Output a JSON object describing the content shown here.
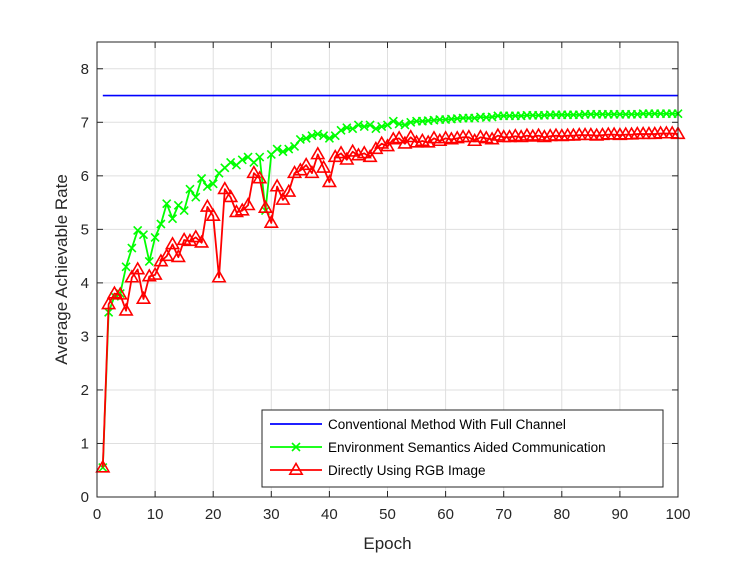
{
  "chart_data": {
    "type": "line",
    "xlabel": "Epoch",
    "ylabel": "Average Achievable Rate",
    "xlim": [
      0,
      100
    ],
    "ylim": [
      0,
      8.5
    ],
    "xticks": [
      0,
      10,
      20,
      30,
      40,
      50,
      60,
      70,
      80,
      90,
      100
    ],
    "yticks": [
      0,
      1,
      2,
      3,
      4,
      5,
      6,
      7,
      8
    ],
    "grid": true,
    "legend_position": "bottom-right",
    "series": [
      {
        "name": "Conventional Method With Full Channel",
        "color": "#0000ff",
        "marker": "none",
        "x": [
          1,
          100
        ],
        "y": [
          7.5,
          7.5
        ]
      },
      {
        "name": "Environment Semantics Aided Communication",
        "color": "#00ff00",
        "marker": "x",
        "x": [
          1,
          2,
          3,
          4,
          5,
          6,
          7,
          8,
          9,
          10,
          11,
          12,
          13,
          14,
          15,
          16,
          17,
          18,
          19,
          20,
          21,
          22,
          23,
          24,
          25,
          26,
          27,
          28,
          29,
          30,
          31,
          32,
          33,
          34,
          35,
          36,
          37,
          38,
          39,
          40,
          41,
          42,
          43,
          44,
          45,
          46,
          47,
          48,
          49,
          50,
          51,
          52,
          53,
          54,
          55,
          56,
          57,
          58,
          59,
          60,
          61,
          62,
          63,
          64,
          65,
          66,
          67,
          68,
          69,
          70,
          71,
          72,
          73,
          74,
          75,
          76,
          77,
          78,
          79,
          80,
          81,
          82,
          83,
          84,
          85,
          86,
          87,
          88,
          89,
          90,
          91,
          92,
          93,
          94,
          95,
          96,
          97,
          98,
          99,
          100
        ],
        "y": [
          0.55,
          3.45,
          3.75,
          3.8,
          4.3,
          4.65,
          4.98,
          4.9,
          4.4,
          4.85,
          5.1,
          5.48,
          5.2,
          5.45,
          5.35,
          5.75,
          5.6,
          5.95,
          5.8,
          5.85,
          6.05,
          6.15,
          6.25,
          6.2,
          6.3,
          6.35,
          6.25,
          6.35,
          5.35,
          6.4,
          6.5,
          6.45,
          6.5,
          6.55,
          6.68,
          6.7,
          6.75,
          6.78,
          6.75,
          6.7,
          6.75,
          6.85,
          6.9,
          6.88,
          6.95,
          6.92,
          6.95,
          6.88,
          6.92,
          6.95,
          7.02,
          6.97,
          6.95,
          7.0,
          7.02,
          7.02,
          7.03,
          7.04,
          7.05,
          7.05,
          7.06,
          7.07,
          7.08,
          7.08,
          7.08,
          7.1,
          7.09,
          7.1,
          7.12,
          7.12,
          7.12,
          7.12,
          7.12,
          7.13,
          7.13,
          7.13,
          7.13,
          7.14,
          7.14,
          7.14,
          7.14,
          7.14,
          7.14,
          7.15,
          7.15,
          7.15,
          7.15,
          7.15,
          7.15,
          7.15,
          7.15,
          7.15,
          7.15,
          7.16,
          7.16,
          7.16,
          7.16,
          7.16,
          7.16,
          7.16
        ]
      },
      {
        "name": "Directly Using RGB Image",
        "color": "#ff0000",
        "marker": "triangle",
        "x": [
          1,
          2,
          3,
          4,
          5,
          6,
          7,
          8,
          9,
          10,
          11,
          12,
          13,
          14,
          15,
          16,
          17,
          18,
          19,
          20,
          21,
          22,
          23,
          24,
          25,
          26,
          27,
          28,
          29,
          30,
          31,
          32,
          33,
          34,
          35,
          36,
          37,
          38,
          39,
          40,
          41,
          42,
          43,
          44,
          45,
          46,
          47,
          48,
          49,
          50,
          51,
          52,
          53,
          54,
          55,
          56,
          57,
          58,
          59,
          60,
          61,
          62,
          63,
          64,
          65,
          66,
          67,
          68,
          69,
          70,
          71,
          72,
          73,
          74,
          75,
          76,
          77,
          78,
          79,
          80,
          81,
          82,
          83,
          84,
          85,
          86,
          87,
          88,
          89,
          90,
          91,
          92,
          93,
          94,
          95,
          96,
          97,
          98,
          99,
          100
        ],
        "y": [
          0.55,
          3.6,
          3.8,
          3.78,
          3.48,
          4.1,
          4.25,
          3.7,
          4.12,
          4.15,
          4.4,
          4.5,
          4.72,
          4.48,
          4.8,
          4.78,
          4.85,
          4.75,
          5.42,
          5.25,
          4.1,
          5.75,
          5.6,
          5.32,
          5.35,
          5.45,
          6.05,
          5.95,
          5.4,
          5.12,
          5.8,
          5.55,
          5.7,
          6.05,
          6.1,
          6.2,
          6.05,
          6.4,
          6.15,
          5.88,
          6.35,
          6.42,
          6.3,
          6.45,
          6.38,
          6.42,
          6.35,
          6.5,
          6.6,
          6.55,
          6.68,
          6.7,
          6.6,
          6.72,
          6.62,
          6.65,
          6.62,
          6.7,
          6.65,
          6.7,
          6.68,
          6.7,
          6.72,
          6.72,
          6.65,
          6.72,
          6.7,
          6.68,
          6.75,
          6.72,
          6.72,
          6.74,
          6.72,
          6.75,
          6.73,
          6.75,
          6.72,
          6.74,
          6.75,
          6.74,
          6.75,
          6.75,
          6.76,
          6.76,
          6.76,
          6.75,
          6.76,
          6.77,
          6.77,
          6.76,
          6.77,
          6.77,
          6.78,
          6.78,
          6.78,
          6.78,
          6.79,
          6.79,
          6.79,
          6.78
        ]
      }
    ]
  }
}
